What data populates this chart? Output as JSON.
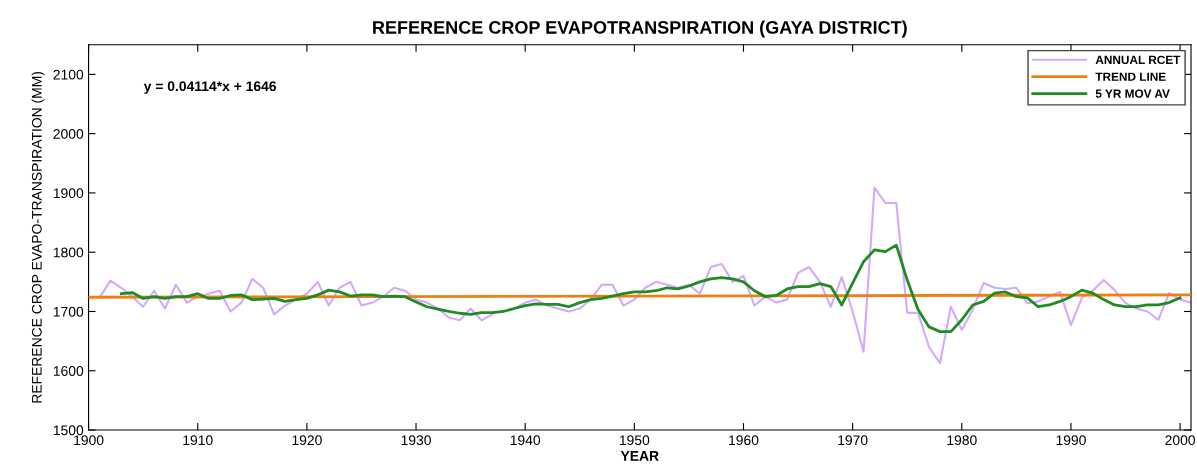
{
  "chart_data": {
    "type": "line",
    "title": "REFERENCE CROP EVAPOTRANSPIRATION (GAYA DISTRICT)",
    "xlabel": "YEAR",
    "ylabel": "REFERENCE CROP EVAPO-TRANSPIRATION (MM)",
    "annotations": [
      "y = 0.04114*x + 1646"
    ],
    "xlim": [
      1900,
      2001
    ],
    "xticks": [
      1900,
      1910,
      1920,
      1930,
      1940,
      1950,
      1960,
      1970,
      1980,
      1990,
      2000
    ],
    "ylim": [
      1500,
      2150
    ],
    "yticks": [
      1500,
      1600,
      1700,
      1800,
      1900,
      2000,
      2100
    ],
    "grid": false,
    "legend": "top right",
    "marker": "none",
    "line_style": "solid",
    "series": [
      {
        "name": "ANNUAL RCET",
        "color": "#d4a8ff",
        "x": [
          1901,
          1902,
          1903,
          1904,
          1905,
          1906,
          1907,
          1908,
          1909,
          1910,
          1911,
          1912,
          1913,
          1914,
          1915,
          1916,
          1917,
          1918,
          1919,
          1920,
          1921,
          1922,
          1923,
          1924,
          1925,
          1926,
          1927,
          1928,
          1929,
          1930,
          1931,
          1932,
          1933,
          1934,
          1935,
          1936,
          1937,
          1938,
          1939,
          1940,
          1941,
          1942,
          1943,
          1944,
          1945,
          1946,
          1947,
          1948,
          1949,
          1950,
          1951,
          1952,
          1953,
          1954,
          1955,
          1956,
          1957,
          1958,
          1959,
          1960,
          1961,
          1962,
          1963,
          1964,
          1965,
          1966,
          1967,
          1968,
          1969,
          1970,
          1971,
          1972,
          1973,
          1974,
          1975,
          1976,
          1977,
          1978,
          1979,
          1980,
          1981,
          1982,
          1983,
          1984,
          1985,
          1986,
          1987,
          1988,
          1989,
          1990,
          1991,
          1992,
          1993,
          1994,
          1995,
          1996,
          1997,
          1998,
          1999,
          2000,
          2001
        ],
        "values": [
          1723,
          1752,
          1740,
          1725,
          1708,
          1735,
          1705,
          1745,
          1715,
          1725,
          1730,
          1735,
          1700,
          1715,
          1755,
          1740,
          1695,
          1710,
          1720,
          1730,
          1750,
          1710,
          1740,
          1750,
          1710,
          1715,
          1725,
          1740,
          1735,
          1720,
          1715,
          1705,
          1690,
          1685,
          1705,
          1685,
          1695,
          null,
          1705,
          1715,
          1720,
          1710,
          1705,
          1700,
          1705,
          1720,
          1745,
          1745,
          1710,
          1720,
          1740,
          1750,
          1745,
          1740,
          1745,
          1730,
          1775,
          1780,
          1750,
          1760,
          1710,
          1725,
          1715,
          1720,
          1765,
          1775,
          1750,
          1708,
          1758,
          1700,
          1632,
          1909,
          1883,
          1883,
          1698,
          1697,
          1640,
          1613,
          1708,
          1669,
          1703,
          1748,
          1740,
          1738,
          1740,
          1714,
          1717,
          1725,
          1733,
          1677,
          1723,
          1735,
          1753,
          1736,
          1714,
          1705,
          1700,
          1686,
          1731,
          1720,
          1715
        ]
      },
      {
        "name": "TREND LINE",
        "color": "#f07f13",
        "x": [
          1900,
          2001
        ],
        "values": [
          1724,
          1728
        ]
      },
      {
        "name": "5 YR MOV AV",
        "color": "#1e8c1e",
        "x": [
          1903,
          1904,
          1905,
          1906,
          1907,
          1908,
          1909,
          1910,
          1911,
          1912,
          1913,
          1914,
          1915,
          1916,
          1917,
          1918,
          1919,
          1920,
          1921,
          1922,
          1923,
          1924,
          1925,
          1926,
          1927,
          1928,
          1929,
          1930,
          1931,
          1932,
          1933,
          1934,
          1935,
          1936,
          1937,
          1938,
          1939,
          1940,
          1941,
          1942,
          1943,
          1944,
          1945,
          1946,
          1947,
          1948,
          1949,
          1950,
          1951,
          1952,
          1953,
          1954,
          1955,
          1956,
          1957,
          1958,
          1959,
          1960,
          1961,
          1962,
          1963,
          1964,
          1965,
          1966,
          1967,
          1968,
          1969,
          1970,
          1971,
          1972,
          1973,
          1974,
          1975,
          1976,
          1977,
          1978,
          1979,
          1980,
          1981,
          1982,
          1983,
          1984,
          1985,
          1986,
          1987,
          1988,
          1989,
          1990,
          1991,
          1992,
          1993,
          1994,
          1995,
          1996,
          1997,
          1998,
          1999,
          2000
        ],
        "values": [
          1730,
          1732,
          1722,
          1725,
          1722,
          1725,
          1725,
          1730,
          1722,
          1722,
          1727,
          1728,
          1720,
          1721,
          1722,
          1717,
          1720,
          1722,
          1728,
          1736,
          1733,
          1726,
          1728,
          1728,
          1725,
          1726,
          1725,
          1716,
          1708,
          1704,
          1700,
          1697,
          1695,
          1698,
          1698,
          1700,
          1705,
          1710,
          1713,
          1712,
          1712,
          1708,
          1715,
          1720,
          1722,
          1726,
          1730,
          1733,
          1733,
          1735,
          1740,
          1738,
          1743,
          1750,
          1755,
          1757,
          1755,
          1750,
          1735,
          1725,
          1727,
          1738,
          1742,
          1742,
          1747,
          1742,
          1711,
          1748,
          1784,
          1804,
          1801,
          1812,
          1753,
          1703,
          1674,
          1666,
          1666,
          1686,
          1711,
          1717,
          1731,
          1733,
          1725,
          1723,
          1708,
          1711,
          1717,
          1725,
          1736,
          1731,
          1720,
          1711,
          1708,
          1708,
          1711,
          1711,
          1715,
          1723
        ]
      }
    ]
  }
}
